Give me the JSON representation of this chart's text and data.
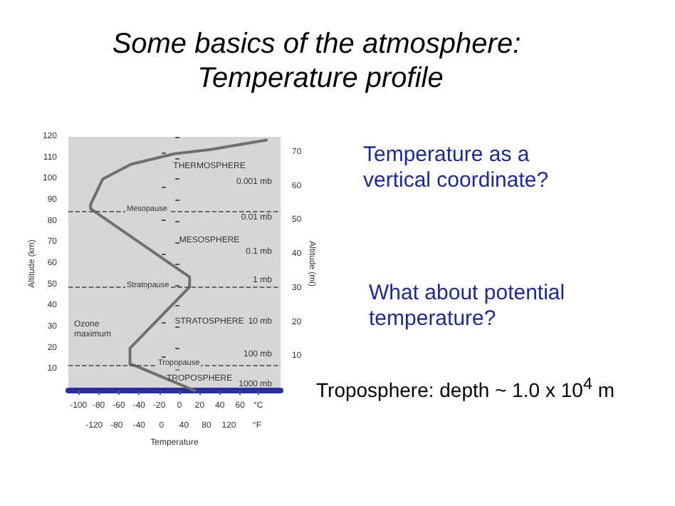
{
  "chart_data": {
    "type": "line",
    "title": "Some basics of the atmosphere: Temperature profile",
    "xlabel": "Temperature",
    "ylabel": "Altitude (km)",
    "y2label": "Altitude (mi)",
    "x": [
      15,
      -43,
      -49,
      -49,
      10,
      10,
      -88,
      -88,
      -76,
      -48,
      -5,
      31,
      86
    ],
    "series": [
      {
        "color": "#707070",
        "values": [
          0,
          11.6,
          12.5,
          20,
          49,
          53.7,
          86,
          88,
          100,
          107,
          112,
          114,
          118.5
        ]
      }
    ],
    "xlim": [
      -110,
      100
    ],
    "xticks": [
      -100,
      -80,
      -60,
      -40,
      -20,
      0,
      20,
      40,
      60,
      {
        "value": 78,
        "label": "°C"
      }
    ],
    "x2lim": [
      -166,
      212
    ],
    "x2ticks": [
      -120,
      -80,
      -40,
      0,
      40,
      80,
      120,
      {
        "value": 170,
        "label": "°F"
      }
    ],
    "ylim": [
      0,
      120
    ],
    "yticks": [
      10,
      20,
      30,
      40,
      50,
      60,
      70,
      80,
      90,
      100,
      110,
      120
    ],
    "y2lim": [
      0,
      74.56
    ],
    "y2ticks": [
      10,
      20,
      30,
      40,
      50,
      60,
      70
    ],
    "ref_lines": [
      {
        "axis": "y",
        "value": 85,
        "label": "Mesopause",
        "line_style": "dashed"
      },
      {
        "axis": "y",
        "value": 49,
        "label": "Stratopause",
        "line_style": "dashed"
      },
      {
        "axis": "y",
        "value": 12,
        "label": "Tropopause",
        "line_style": "dashed"
      }
    ],
    "annotations": [
      "Temperature as a vertical coordinate?",
      "What about potential temperature?",
      "Troposphere: depth ~ 1.0 x 10$^{4}$ m",
      "THERMOSPHERE",
      "MESOSPHERE",
      "STRATOSPHERE",
      "TROPOSPHERE",
      "Ozone maximum",
      "0.001 mb",
      "0.01 mb",
      "0.1 mb",
      "1 mb",
      "10 mb",
      "100 mb",
      "1000 mb"
    ],
    "grid": false,
    "marker": "none",
    "line_style": "solid"
  }
}
